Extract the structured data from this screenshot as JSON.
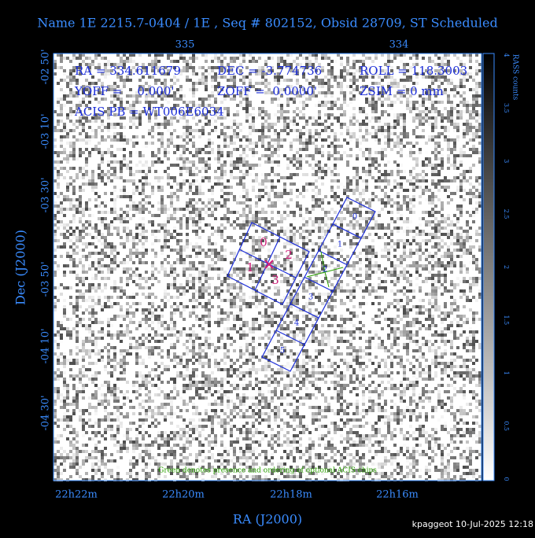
{
  "header": {
    "title": "Name 1E 2215.7-0404 / 1E , Seq # 802152, Obsid 28709, ST Scheduled"
  },
  "axes": {
    "x_label": "RA (J2000)",
    "y_label": "Dec (J2000)",
    "top_ticks": [
      "335",
      "334"
    ],
    "bottom_ticks": [
      "22h22m",
      "22h20m",
      "22h18m",
      "22h16m"
    ],
    "left_ticks": [
      "-02 50'",
      "-03 10'",
      "-03 30'",
      "-03 50'",
      "-04 10'",
      "-04 30'"
    ]
  },
  "colorbar": {
    "label": "RASS counts",
    "ticks": [
      "0",
      "0.5",
      "1",
      "1.5",
      "2",
      "2.5",
      "3",
      "3.5",
      "4"
    ]
  },
  "info": {
    "line1": [
      "RA = 334.611679",
      "DEC = -3.774736",
      "ROLL = 118.3003"
    ],
    "line2": [
      "YOFF =    0.000'",
      "ZOFF =  0.0000'",
      "ZSIM = 0 mm"
    ],
    "line3": "ACIS PB = WT006E6034"
  },
  "chips": {
    "acis_i": [
      "0",
      "2",
      "1",
      "3"
    ],
    "acis_s": [
      "0",
      "1",
      "2",
      "3",
      "4",
      "5"
    ]
  },
  "note": "Green denotes presence and ordering of optional ACIS chips",
  "footer": "kpaggeot 10-Jul-2025 12:18"
}
